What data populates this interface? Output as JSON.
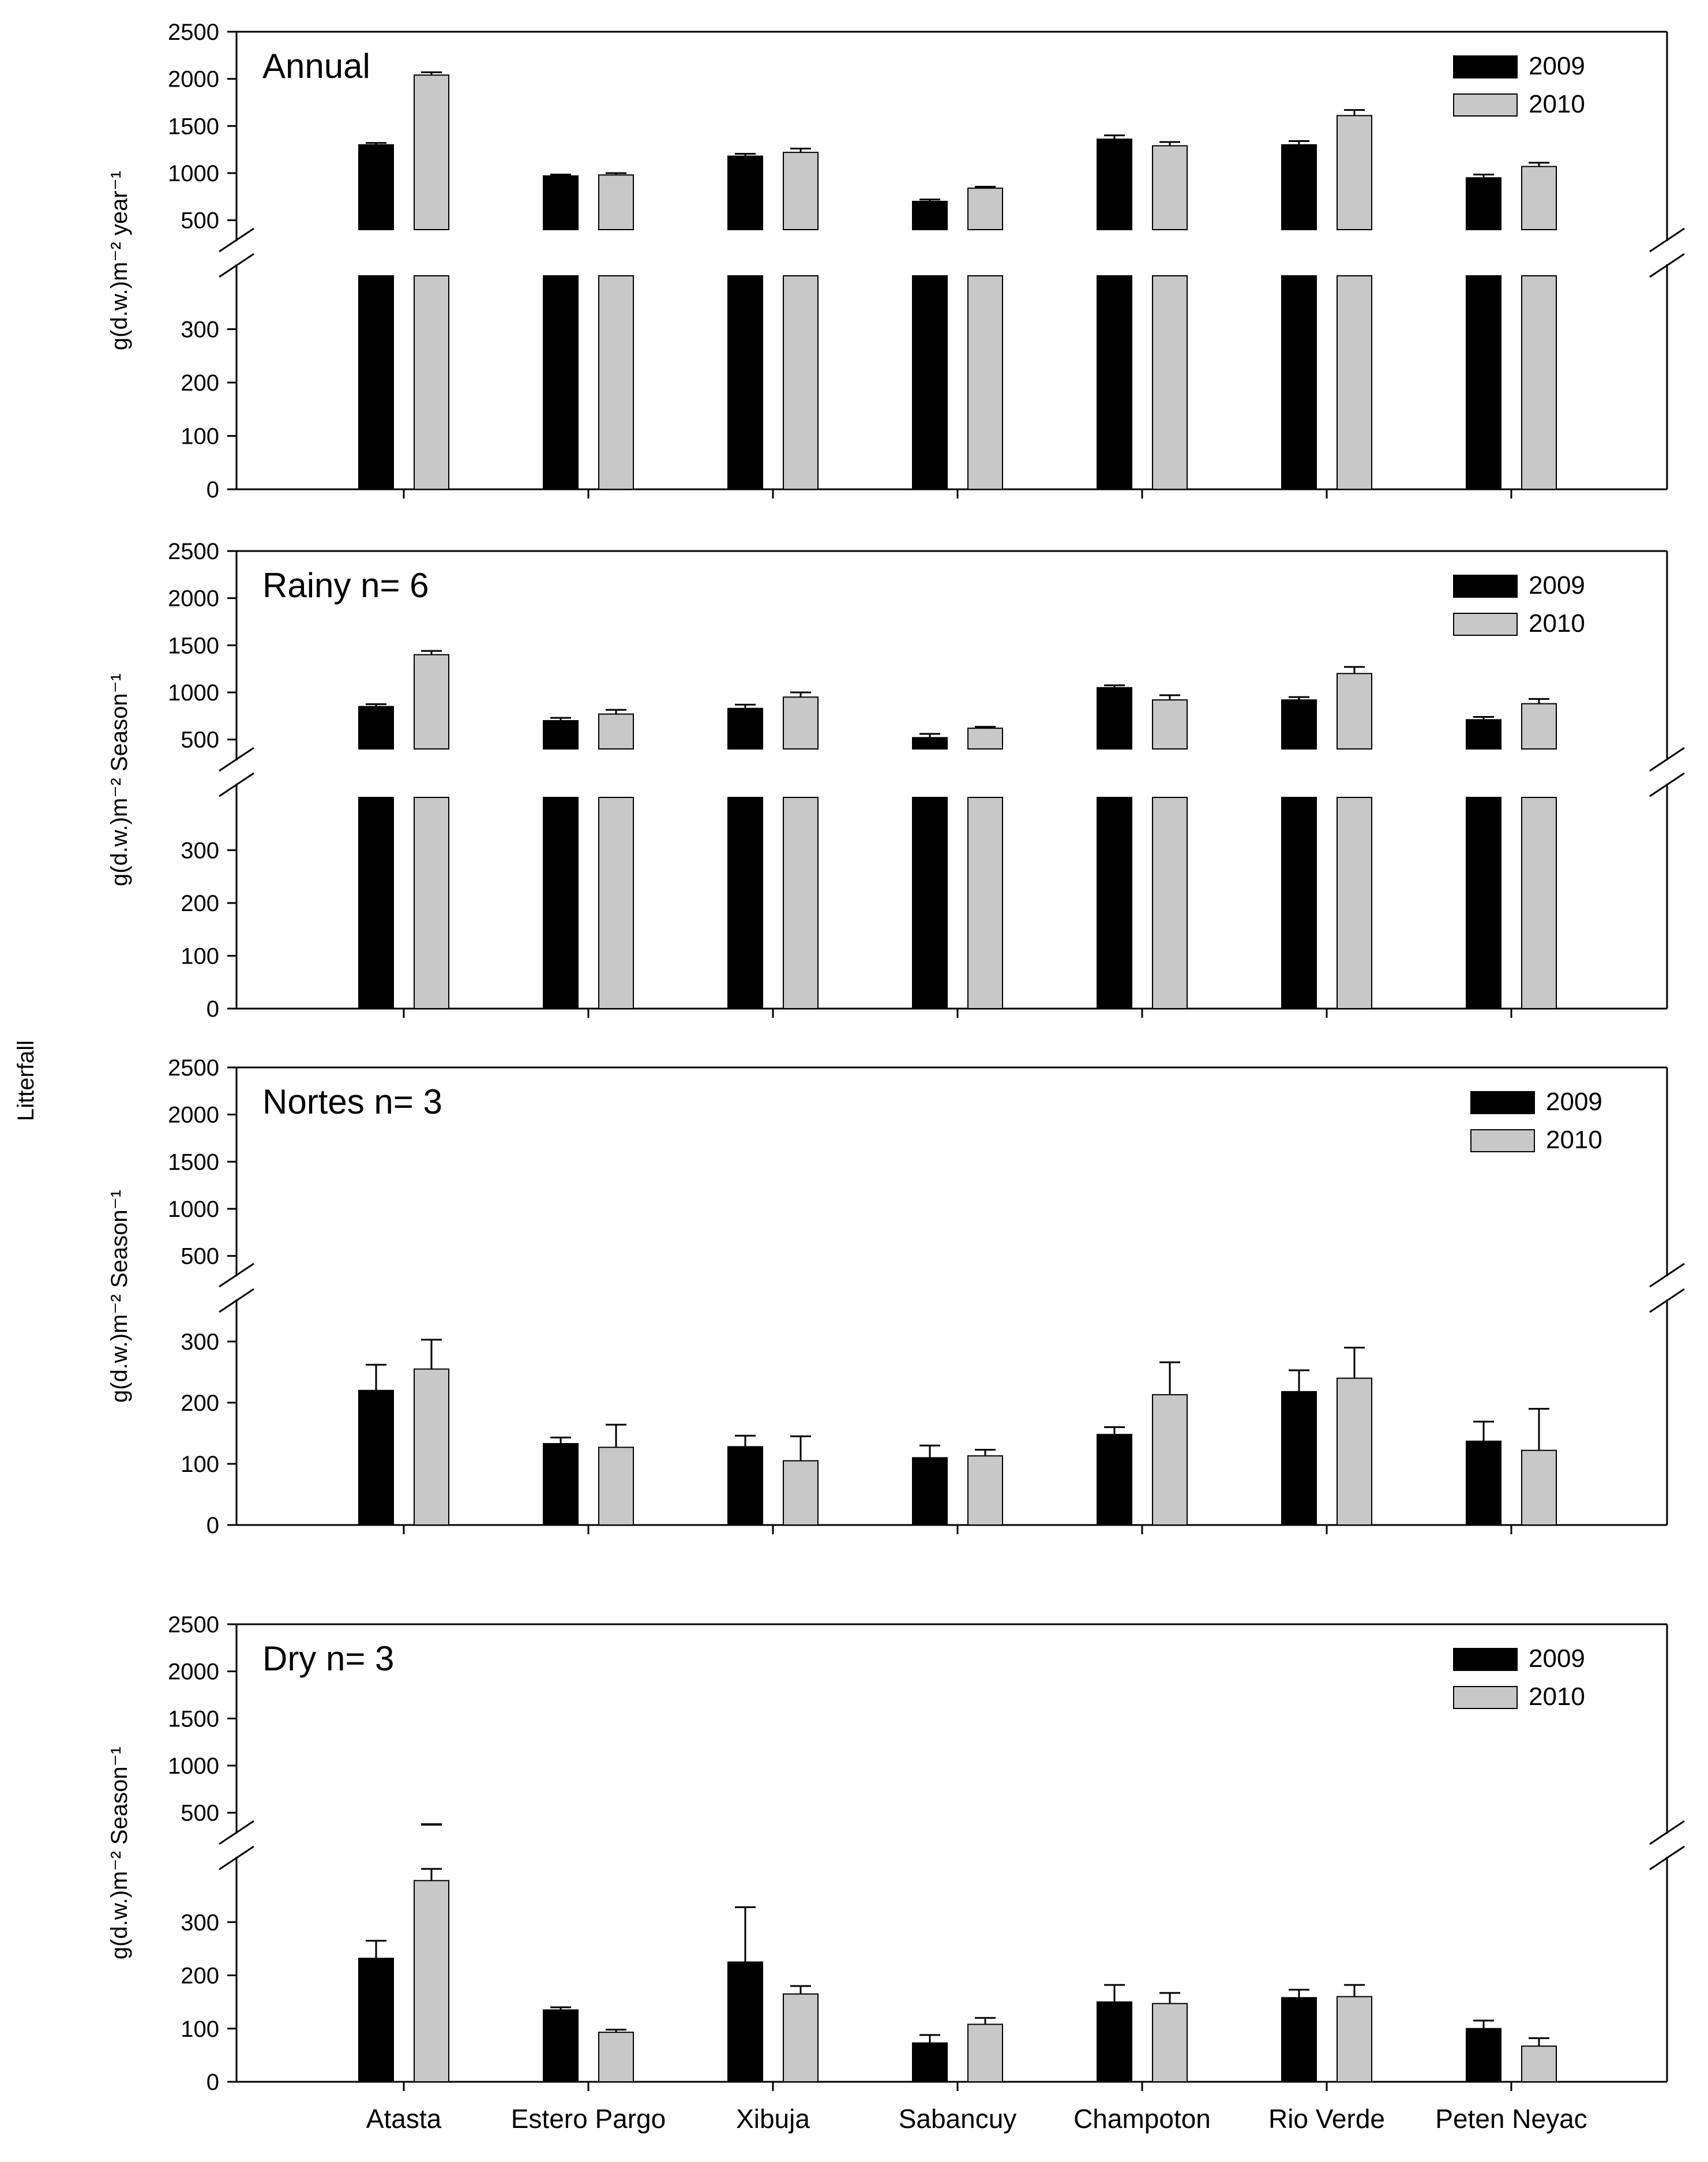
{
  "figure": {
    "shared_ylabel": "Litterfall"
  },
  "chart_data": [
    {
      "type": "bar",
      "title": "Annual",
      "ylabel": "g(d.w.)m⁻² year⁻¹",
      "categories": [
        "Atasta",
        "Estero Pargo",
        "Xibuja",
        "Sabancuy",
        "Champoton",
        "Rio Verde",
        "Peten Neyac"
      ],
      "series": [
        {
          "name": "2009",
          "color": "#000000",
          "values": [
            1300,
            970,
            1180,
            700,
            1360,
            1300,
            950
          ],
          "errors": [
            20,
            15,
            25,
            20,
            40,
            40,
            35
          ]
        },
        {
          "name": "2010",
          "color": "#c8c8c8",
          "values": [
            2040,
            980,
            1220,
            840,
            1290,
            1610,
            1070
          ],
          "errors": [
            30,
            20,
            40,
            15,
            40,
            60,
            40
          ]
        }
      ],
      "yticks_lower": [
        "0",
        "100",
        "200",
        "300"
      ],
      "yticks_upper": [
        "500",
        "1000",
        "1500",
        "2000",
        "2500"
      ],
      "ylim_lower": [
        0,
        400
      ],
      "ylim_upper": [
        400,
        2500
      ],
      "legend": "top-right"
    },
    {
      "type": "bar",
      "title": "Rainy  n= 6",
      "ylabel": "g(d.w.)m⁻² Season⁻¹",
      "categories": [
        "Atasta",
        "Estero Pargo",
        "Xibuja",
        "Sabancuy",
        "Champoton",
        "Rio Verde",
        "Peten Neyac"
      ],
      "series": [
        {
          "name": "2009",
          "color": "#000000",
          "values": [
            850,
            700,
            830,
            520,
            1050,
            920,
            710
          ],
          "errors": [
            25,
            30,
            40,
            40,
            25,
            30,
            30
          ]
        },
        {
          "name": "2010",
          "color": "#c8c8c8",
          "values": [
            1400,
            770,
            950,
            620,
            920,
            1200,
            880
          ],
          "errors": [
            40,
            45,
            50,
            15,
            50,
            70,
            50
          ]
        }
      ],
      "yticks_lower": [
        "0",
        "100",
        "200",
        "300"
      ],
      "yticks_upper": [
        "500",
        "1000",
        "1500",
        "2000",
        "2500"
      ],
      "ylim_lower": [
        0,
        400
      ],
      "ylim_upper": [
        400,
        2500
      ],
      "legend": "top-right"
    },
    {
      "type": "bar",
      "title": "Nortes  n= 3",
      "ylabel": "g(d.w.)m⁻² Season⁻¹",
      "categories": [
        "Atasta",
        "Estero Pargo",
        "Xibuja",
        "Sabancuy",
        "Champoton",
        "Rio Verde",
        "Peten Neyac"
      ],
      "series": [
        {
          "name": "2009",
          "color": "#000000",
          "values": [
            220,
            133,
            128,
            110,
            148,
            218,
            137
          ],
          "errors": [
            42,
            10,
            18,
            20,
            12,
            35,
            32
          ]
        },
        {
          "name": "2010",
          "color": "#c8c8c8",
          "values": [
            255,
            127,
            105,
            113,
            213,
            240,
            122
          ],
          "errors": [
            48,
            37,
            40,
            10,
            53,
            50,
            68
          ]
        }
      ],
      "yticks_lower": [
        "0",
        "100",
        "200",
        "300"
      ],
      "yticks_upper": [
        "500",
        "1000",
        "1500",
        "2000",
        "2500"
      ],
      "ylim_lower": [
        0,
        350
      ],
      "ylim_upper": [
        400,
        2500
      ],
      "legend": "top-right"
    },
    {
      "type": "bar",
      "title": "Dry  n= 3",
      "ylabel": "g(d.w.)m⁻² Season⁻¹",
      "categories": [
        "Atasta",
        "Estero Pargo",
        "Xibuja",
        "Sabancuy",
        "Champoton",
        "Rio Verde",
        "Peten Neyac"
      ],
      "series": [
        {
          "name": "2009",
          "color": "#000000",
          "values": [
            232,
            135,
            225,
            73,
            150,
            158,
            100
          ],
          "errors": [
            33,
            5,
            103,
            15,
            32,
            15,
            15
          ]
        },
        {
          "name": "2010",
          "color": "#c8c8c8",
          "values": [
            378,
            93,
            165,
            108,
            147,
            160,
            67
          ],
          "errors": [
            22,
            5,
            15,
            12,
            20,
            22,
            15
          ]
        }
      ],
      "upper_marks": [
        {
          "category": "Atasta",
          "series": "2010",
          "value": 400
        }
      ],
      "yticks_lower": [
        "0",
        "100",
        "200",
        "300"
      ],
      "yticks_upper": [
        "500",
        "1000",
        "1500",
        "2000",
        "2500"
      ],
      "ylim_lower": [
        0,
        400
      ],
      "ylim_upper": [
        400,
        2500
      ],
      "legend": "top-right"
    }
  ]
}
